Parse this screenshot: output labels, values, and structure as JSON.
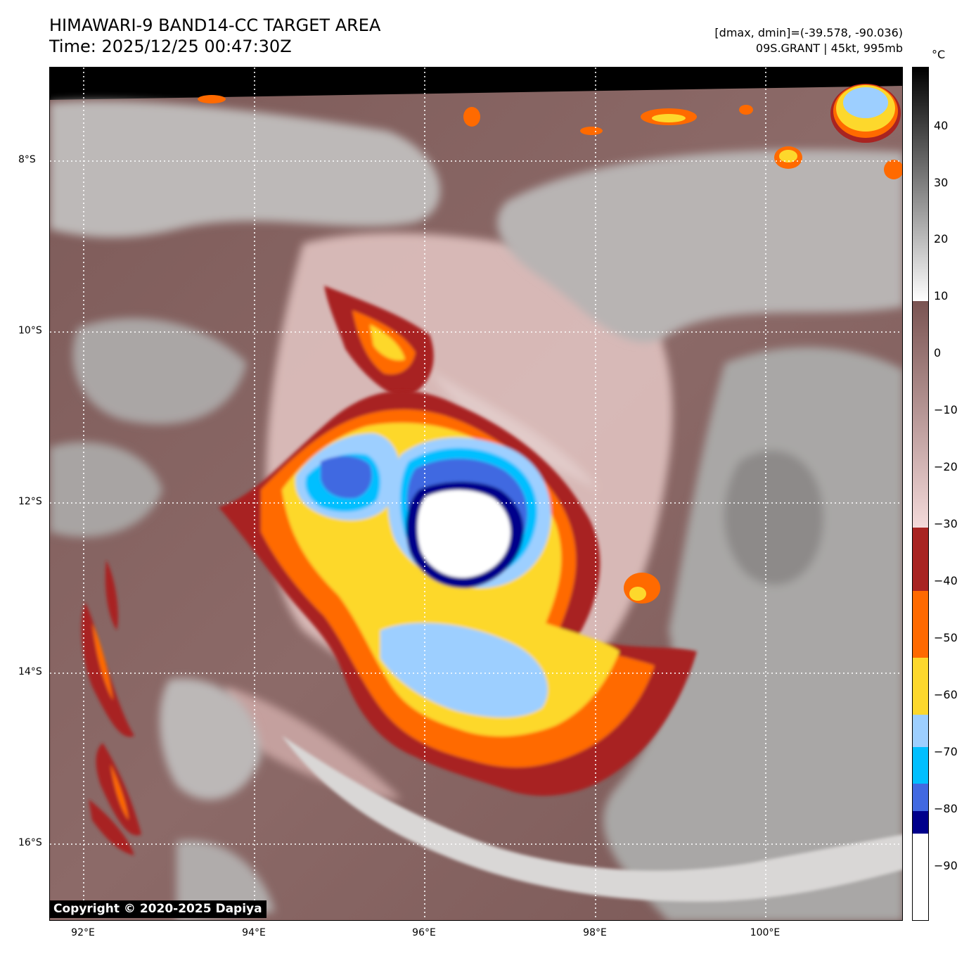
{
  "title": {
    "line1": "HIMAWARI-9 BAND14-CC TARGET AREA",
    "line2": "Time: 2025/12/25 00:47:30Z"
  },
  "info": {
    "line1": "[dmax, dmin]=(-39.578, -90.036)",
    "line2": "09S.GRANT | 45kt, 995mb"
  },
  "copyright": "Copyright © 2020-2025 Dapiya",
  "axes": {
    "lat_labels": [
      "8°S",
      "10°S",
      "12°S",
      "14°S",
      "16°S"
    ],
    "lon_labels": [
      "92°E",
      "94°E",
      "96°E",
      "98°E",
      "100°E"
    ]
  },
  "colorbar": {
    "unit": "°C",
    "tick_labels": [
      "40",
      "30",
      "20",
      "10",
      "0",
      "−10",
      "−20",
      "−30",
      "−40",
      "−50",
      "−60",
      "−70",
      "−80",
      "−90"
    ],
    "colors": {
      "warm_gray_top": "#000000",
      "warm_gray_bottom": "#ffffff",
      "brown_top": "#7a5452",
      "brown_bottom": "#f4dada",
      "dark_red": "#a82422",
      "orange": "#ff6a00",
      "yellow": "#fdd82c",
      "light_blue": "#9dcfff",
      "cyan": "#00bfff",
      "royal_blue": "#4169e1",
      "navy": "#00008b",
      "white": "#ffffff"
    }
  }
}
